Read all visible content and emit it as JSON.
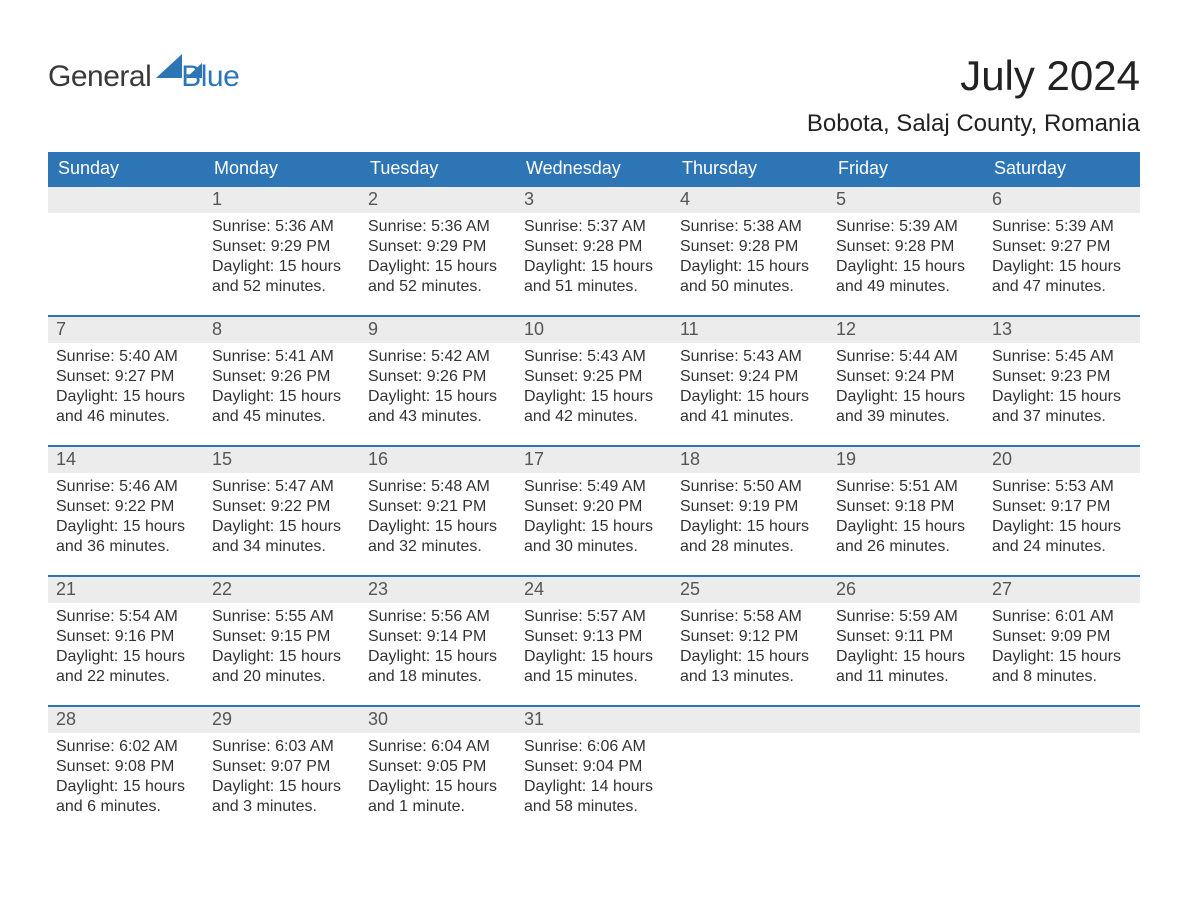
{
  "brand": {
    "word_a": "General",
    "word_b": "Blue",
    "text_color_a": "#3a3a3a",
    "text_color_b": "#2e75b6",
    "icon_color": "#2e75b6"
  },
  "title": "July 2024",
  "location": "Bobota, Salaj County, Romania",
  "colors": {
    "header_bg": "#2e75b6",
    "header_text": "#ffffff",
    "daynum_band_bg": "#ececec",
    "week_border": "#2e75b6",
    "page_bg": "#ffffff",
    "body_text": "#333333",
    "daynum_text": "#555555"
  },
  "fonts": {
    "title_size_pt": 32,
    "location_size_pt": 18,
    "dow_size_pt": 14,
    "daynum_size_pt": 14,
    "body_size_pt": 12
  },
  "days_of_week": [
    "Sunday",
    "Monday",
    "Tuesday",
    "Wednesday",
    "Thursday",
    "Friday",
    "Saturday"
  ],
  "weeks": [
    [
      {
        "n": "",
        "lines": []
      },
      {
        "n": "1",
        "lines": [
          "Sunrise: 5:36 AM",
          "Sunset: 9:29 PM",
          "Daylight: 15 hours and 52 minutes."
        ]
      },
      {
        "n": "2",
        "lines": [
          "Sunrise: 5:36 AM",
          "Sunset: 9:29 PM",
          "Daylight: 15 hours and 52 minutes."
        ]
      },
      {
        "n": "3",
        "lines": [
          "Sunrise: 5:37 AM",
          "Sunset: 9:28 PM",
          "Daylight: 15 hours and 51 minutes."
        ]
      },
      {
        "n": "4",
        "lines": [
          "Sunrise: 5:38 AM",
          "Sunset: 9:28 PM",
          "Daylight: 15 hours and 50 minutes."
        ]
      },
      {
        "n": "5",
        "lines": [
          "Sunrise: 5:39 AM",
          "Sunset: 9:28 PM",
          "Daylight: 15 hours and 49 minutes."
        ]
      },
      {
        "n": "6",
        "lines": [
          "Sunrise: 5:39 AM",
          "Sunset: 9:27 PM",
          "Daylight: 15 hours and 47 minutes."
        ]
      }
    ],
    [
      {
        "n": "7",
        "lines": [
          "Sunrise: 5:40 AM",
          "Sunset: 9:27 PM",
          "Daylight: 15 hours and 46 minutes."
        ]
      },
      {
        "n": "8",
        "lines": [
          "Sunrise: 5:41 AM",
          "Sunset: 9:26 PM",
          "Daylight: 15 hours and 45 minutes."
        ]
      },
      {
        "n": "9",
        "lines": [
          "Sunrise: 5:42 AM",
          "Sunset: 9:26 PM",
          "Daylight: 15 hours and 43 minutes."
        ]
      },
      {
        "n": "10",
        "lines": [
          "Sunrise: 5:43 AM",
          "Sunset: 9:25 PM",
          "Daylight: 15 hours and 42 minutes."
        ]
      },
      {
        "n": "11",
        "lines": [
          "Sunrise: 5:43 AM",
          "Sunset: 9:24 PM",
          "Daylight: 15 hours and 41 minutes."
        ]
      },
      {
        "n": "12",
        "lines": [
          "Sunrise: 5:44 AM",
          "Sunset: 9:24 PM",
          "Daylight: 15 hours and 39 minutes."
        ]
      },
      {
        "n": "13",
        "lines": [
          "Sunrise: 5:45 AM",
          "Sunset: 9:23 PM",
          "Daylight: 15 hours and 37 minutes."
        ]
      }
    ],
    [
      {
        "n": "14",
        "lines": [
          "Sunrise: 5:46 AM",
          "Sunset: 9:22 PM",
          "Daylight: 15 hours and 36 minutes."
        ]
      },
      {
        "n": "15",
        "lines": [
          "Sunrise: 5:47 AM",
          "Sunset: 9:22 PM",
          "Daylight: 15 hours and 34 minutes."
        ]
      },
      {
        "n": "16",
        "lines": [
          "Sunrise: 5:48 AM",
          "Sunset: 9:21 PM",
          "Daylight: 15 hours and 32 minutes."
        ]
      },
      {
        "n": "17",
        "lines": [
          "Sunrise: 5:49 AM",
          "Sunset: 9:20 PM",
          "Daylight: 15 hours and 30 minutes."
        ]
      },
      {
        "n": "18",
        "lines": [
          "Sunrise: 5:50 AM",
          "Sunset: 9:19 PM",
          "Daylight: 15 hours and 28 minutes."
        ]
      },
      {
        "n": "19",
        "lines": [
          "Sunrise: 5:51 AM",
          "Sunset: 9:18 PM",
          "Daylight: 15 hours and 26 minutes."
        ]
      },
      {
        "n": "20",
        "lines": [
          "Sunrise: 5:53 AM",
          "Sunset: 9:17 PM",
          "Daylight: 15 hours and 24 minutes."
        ]
      }
    ],
    [
      {
        "n": "21",
        "lines": [
          "Sunrise: 5:54 AM",
          "Sunset: 9:16 PM",
          "Daylight: 15 hours and 22 minutes."
        ]
      },
      {
        "n": "22",
        "lines": [
          "Sunrise: 5:55 AM",
          "Sunset: 9:15 PM",
          "Daylight: 15 hours and 20 minutes."
        ]
      },
      {
        "n": "23",
        "lines": [
          "Sunrise: 5:56 AM",
          "Sunset: 9:14 PM",
          "Daylight: 15 hours and 18 minutes."
        ]
      },
      {
        "n": "24",
        "lines": [
          "Sunrise: 5:57 AM",
          "Sunset: 9:13 PM",
          "Daylight: 15 hours and 15 minutes."
        ]
      },
      {
        "n": "25",
        "lines": [
          "Sunrise: 5:58 AM",
          "Sunset: 9:12 PM",
          "Daylight: 15 hours and 13 minutes."
        ]
      },
      {
        "n": "26",
        "lines": [
          "Sunrise: 5:59 AM",
          "Sunset: 9:11 PM",
          "Daylight: 15 hours and 11 minutes."
        ]
      },
      {
        "n": "27",
        "lines": [
          "Sunrise: 6:01 AM",
          "Sunset: 9:09 PM",
          "Daylight: 15 hours and 8 minutes."
        ]
      }
    ],
    [
      {
        "n": "28",
        "lines": [
          "Sunrise: 6:02 AM",
          "Sunset: 9:08 PM",
          "Daylight: 15 hours and 6 minutes."
        ]
      },
      {
        "n": "29",
        "lines": [
          "Sunrise: 6:03 AM",
          "Sunset: 9:07 PM",
          "Daylight: 15 hours and 3 minutes."
        ]
      },
      {
        "n": "30",
        "lines": [
          "Sunrise: 6:04 AM",
          "Sunset: 9:05 PM",
          "Daylight: 15 hours and 1 minute."
        ]
      },
      {
        "n": "31",
        "lines": [
          "Sunrise: 6:06 AM",
          "Sunset: 9:04 PM",
          "Daylight: 14 hours and 58 minutes."
        ]
      },
      {
        "n": "",
        "lines": []
      },
      {
        "n": "",
        "lines": []
      },
      {
        "n": "",
        "lines": []
      }
    ]
  ]
}
